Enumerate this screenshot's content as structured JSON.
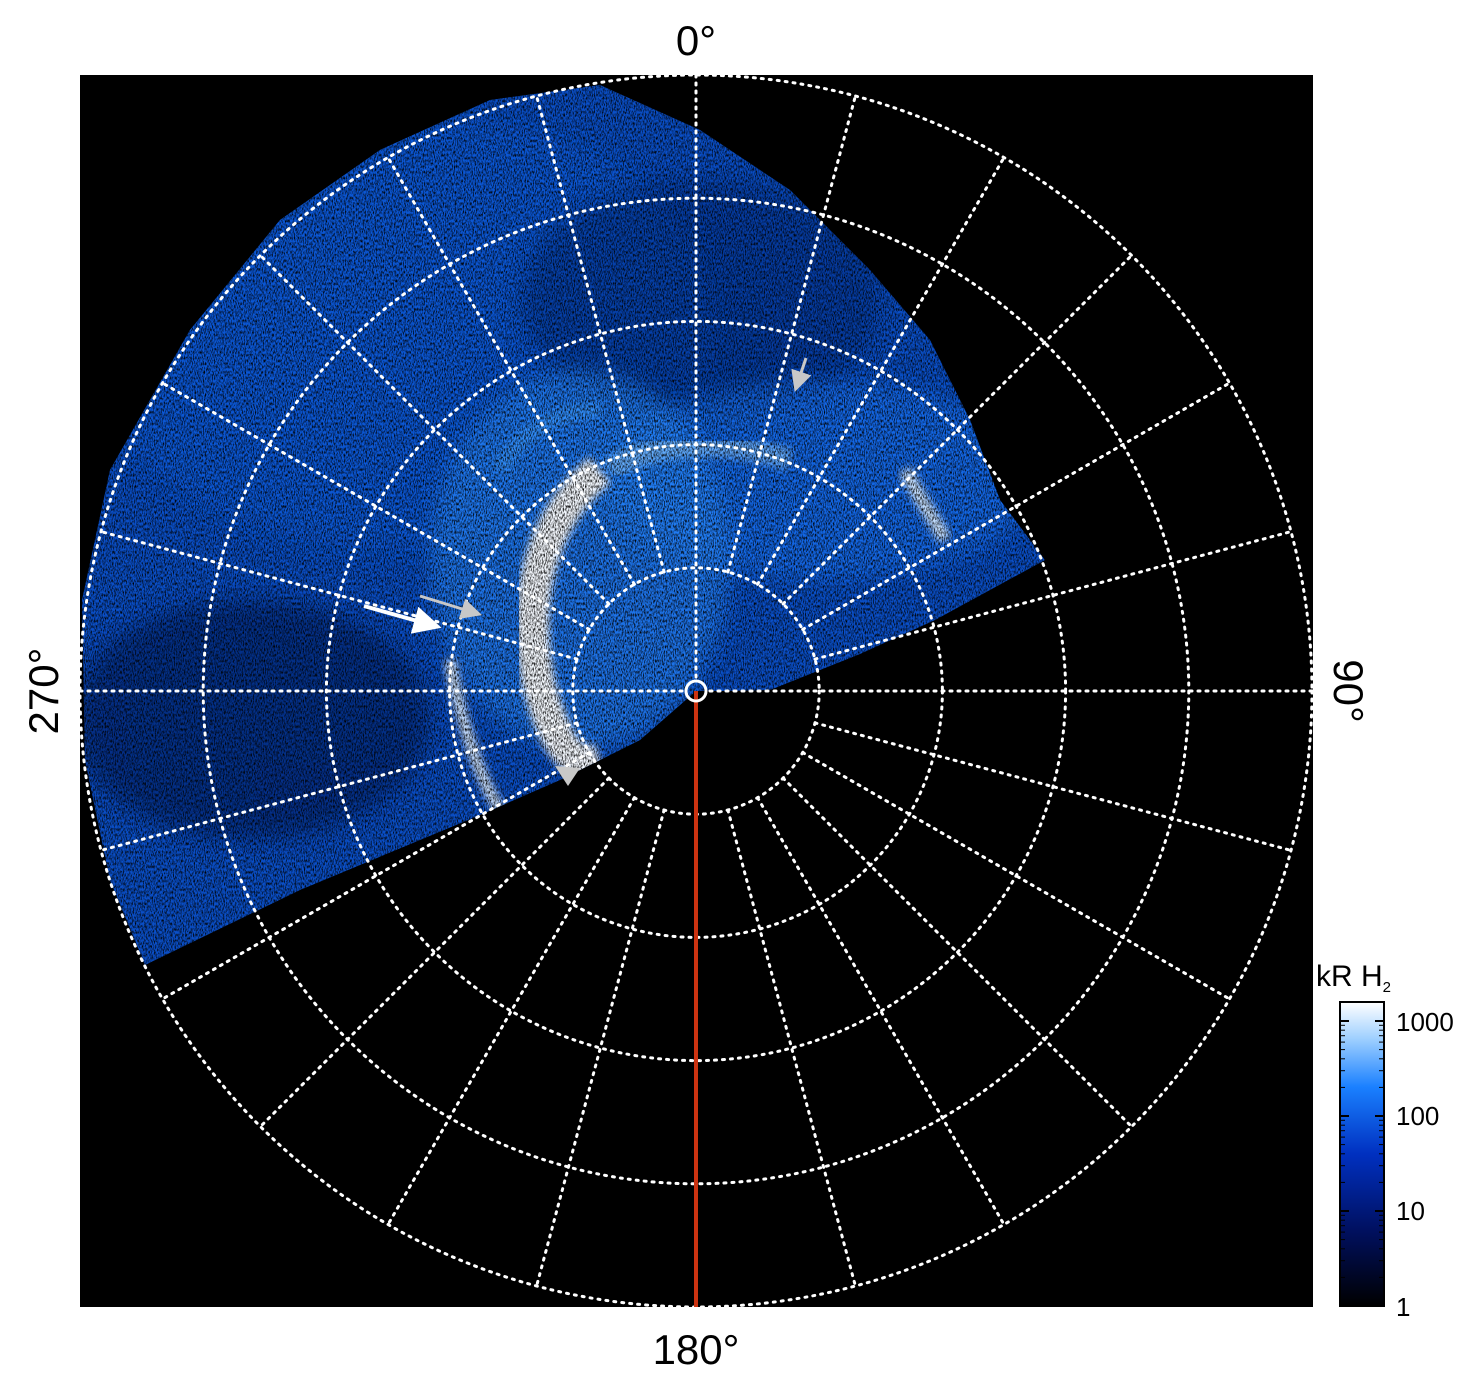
{
  "polar_plot": {
    "angle_labels": {
      "top": "0°",
      "right": "90°",
      "bottom": "180°",
      "left": "270°"
    },
    "ring_count": 5,
    "spoke_step_deg": 15,
    "grid_style": "dotted white",
    "background": "#000000",
    "meridian_line_color": "#cc3311",
    "arrow_colors": {
      "primary": "#ffffff",
      "secondary": "#c8c8c8"
    }
  },
  "colorbar": {
    "title": "kR H",
    "title_subscript": "2",
    "scale": "log",
    "ticks": [
      "1000",
      "100",
      "10",
      "1"
    ],
    "colors": [
      "#000000",
      "#001060",
      "#0030c0",
      "#1a80ff",
      "#9fd0ff",
      "#ffffff"
    ]
  }
}
